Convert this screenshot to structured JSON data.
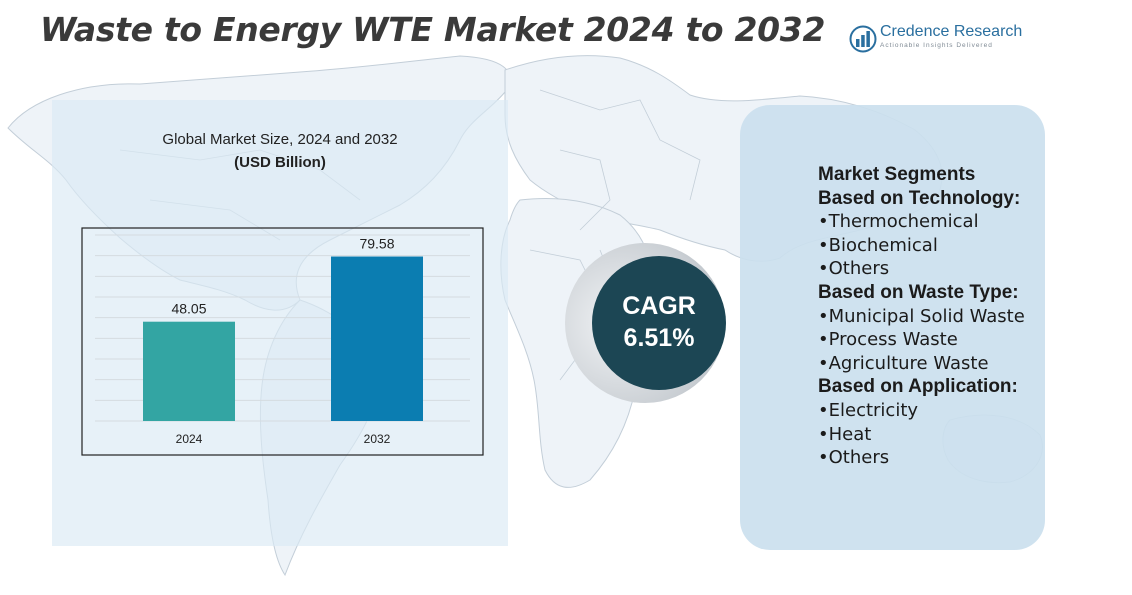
{
  "title": "Waste to Energy WTE Market 2024 to 2032",
  "logo": {
    "name": "Credence Research",
    "tagline": "Actionable Insights Delivered"
  },
  "chart_data": {
    "type": "bar",
    "title": "Global Market Size, 2024 and 2032",
    "unit": "(USD Billion)",
    "categories": [
      "2024",
      "2032"
    ],
    "values": [
      48.05,
      79.58
    ],
    "data_labels": [
      "48.05",
      "79.58"
    ],
    "colors": [
      "#33a5a3",
      "#0b7db1"
    ],
    "ylim": [
      0,
      90
    ],
    "grid": true
  },
  "cagr": {
    "label": "CAGR",
    "value": "6.51%"
  },
  "segments": {
    "heading": "Market Segments",
    "groups": [
      {
        "title": "Based on Technology:",
        "items": [
          "•Thermochemical",
          "•Biochemical",
          "•Others"
        ]
      },
      {
        "title": "Based on Waste Type:",
        "items": [
          "•Municipal Solid Waste",
          "•Process Waste",
          "•Agriculture Waste"
        ]
      },
      {
        "title": "Based on Application:",
        "items": [
          "•Electricity",
          "•Heat",
          "•Others"
        ]
      }
    ]
  },
  "colors": {
    "accent_dark": "#1c4654",
    "panel": "#cbdfee",
    "title": "#3a3a3a"
  }
}
